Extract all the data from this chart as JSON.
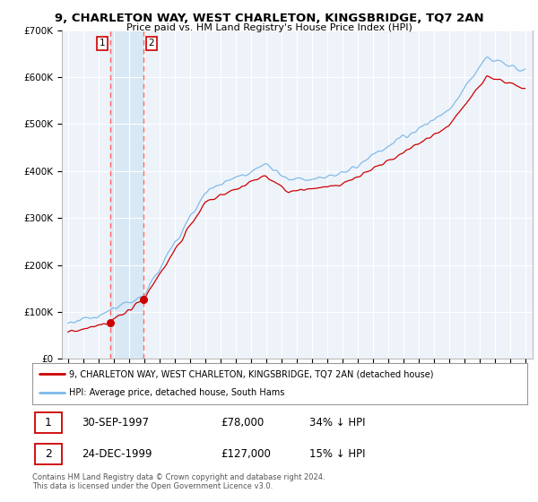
{
  "title": "9, CHARLETON WAY, WEST CHARLETON, KINGSBRIDGE, TQ7 2AN",
  "subtitle": "Price paid vs. HM Land Registry's House Price Index (HPI)",
  "ylim": [
    0,
    700000
  ],
  "yticks": [
    0,
    100000,
    200000,
    300000,
    400000,
    500000,
    600000,
    700000
  ],
  "ytick_labels": [
    "£0",
    "£100K",
    "£200K",
    "£300K",
    "£400K",
    "£500K",
    "£600K",
    "£700K"
  ],
  "hpi_color": "#7bb8e8",
  "price_color": "#cc0000",
  "vline_color": "#ff6666",
  "purchase1_date": 1997.75,
  "purchase1_price": 78000,
  "purchase2_date": 1999.97,
  "purchase2_price": 127000,
  "legend_line1": "9, CHARLETON WAY, WEST CHARLETON, KINGSBRIDGE, TQ7 2AN (detached house)",
  "legend_line2": "HPI: Average price, detached house, South Hams",
  "table_row1": [
    "1",
    "30-SEP-1997",
    "£78,000",
    "34% ↓ HPI"
  ],
  "table_row2": [
    "2",
    "24-DEC-1999",
    "£127,000",
    "15% ↓ HPI"
  ],
  "footnote": "Contains HM Land Registry data © Crown copyright and database right 2024.\nThis data is licensed under the Open Government Licence v3.0.",
  "background_color": "#ffffff",
  "plot_bg_color": "#eef3fa",
  "shade_color": "#d8e8f5"
}
